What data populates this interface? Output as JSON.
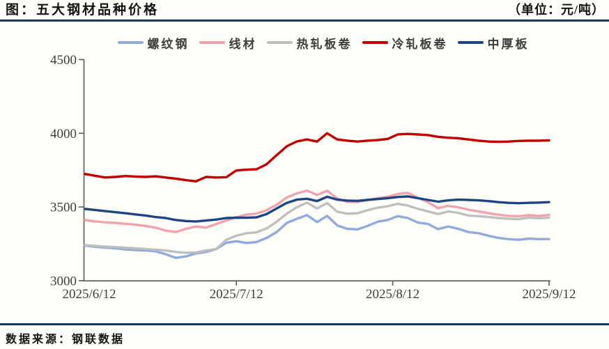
{
  "header": {
    "title": "图：五大钢材品种价格",
    "unit": "（单位：元/吨）"
  },
  "footer": {
    "source": "数据来源：钢联数据"
  },
  "colors": {
    "rule_navy": "#17375E",
    "axis": "#595959",
    "tick_label": "#3d3d3d",
    "background": "#FFFEF8"
  },
  "chart_data": {
    "type": "line",
    "title": "五大钢材品种价格",
    "unit": "元/吨",
    "ylim": [
      3000,
      4500
    ],
    "yticks": [
      4500,
      4000,
      3500,
      3000
    ],
    "x_range_days": [
      0,
      92
    ],
    "x_step_days": 2,
    "dates_start": "2025/6/12",
    "dates_end": "2025/9/12",
    "xticks": [
      {
        "label": "2025/6/12",
        "day": 0
      },
      {
        "label": "2025/7/12",
        "day": 30
      },
      {
        "label": "2025/8/12",
        "day": 61
      },
      {
        "label": "2025/9/12",
        "day": 92
      }
    ],
    "grid": false,
    "legend_position": "top",
    "series": [
      {
        "name": "螺纹钢",
        "color": "#8FAADC",
        "values": [
          3238,
          3230,
          3225,
          3220,
          3212,
          3208,
          3205,
          3200,
          3180,
          3155,
          3165,
          3185,
          3195,
          3215,
          3257,
          3268,
          3256,
          3262,
          3290,
          3330,
          3392,
          3420,
          3445,
          3398,
          3440,
          3375,
          3352,
          3348,
          3372,
          3400,
          3412,
          3438,
          3425,
          3395,
          3385,
          3350,
          3368,
          3352,
          3330,
          3322,
          3305,
          3290,
          3282,
          3278,
          3286,
          3282,
          3283
        ]
      },
      {
        "name": "线材",
        "color": "#F2A2AE",
        "values": [
          3412,
          3402,
          3396,
          3392,
          3386,
          3380,
          3372,
          3360,
          3340,
          3330,
          3352,
          3368,
          3360,
          3385,
          3408,
          3430,
          3448,
          3456,
          3478,
          3515,
          3565,
          3592,
          3612,
          3582,
          3610,
          3558,
          3535,
          3533,
          3548,
          3560,
          3570,
          3588,
          3596,
          3562,
          3532,
          3492,
          3508,
          3498,
          3482,
          3470,
          3458,
          3448,
          3440,
          3438,
          3445,
          3440,
          3446
        ]
      },
      {
        "name": "热轧板卷",
        "color": "#BFBFBF",
        "values": [
          3242,
          3236,
          3232,
          3228,
          3224,
          3220,
          3216,
          3210,
          3205,
          3195,
          3190,
          3192,
          3205,
          3215,
          3278,
          3305,
          3322,
          3328,
          3355,
          3400,
          3455,
          3498,
          3530,
          3490,
          3527,
          3468,
          3455,
          3458,
          3478,
          3495,
          3505,
          3522,
          3510,
          3488,
          3470,
          3452,
          3470,
          3460,
          3442,
          3438,
          3432,
          3425,
          3420,
          3418,
          3428,
          3424,
          3428
        ]
      },
      {
        "name": "冷轧板卷",
        "color": "#C00000",
        "values": [
          3724,
          3712,
          3700,
          3704,
          3710,
          3707,
          3704,
          3708,
          3700,
          3692,
          3682,
          3674,
          3704,
          3700,
          3702,
          3748,
          3753,
          3756,
          3790,
          3852,
          3912,
          3945,
          3958,
          3944,
          4000,
          3958,
          3950,
          3944,
          3950,
          3954,
          3962,
          3992,
          3996,
          3992,
          3988,
          3976,
          3970,
          3966,
          3958,
          3950,
          3944,
          3942,
          3944,
          3948,
          3950,
          3950,
          3952
        ]
      },
      {
        "name": "中厚板",
        "color": "#1C4587",
        "values": [
          3487,
          3480,
          3472,
          3465,
          3458,
          3450,
          3442,
          3432,
          3425,
          3412,
          3405,
          3402,
          3408,
          3415,
          3425,
          3428,
          3427,
          3430,
          3452,
          3490,
          3528,
          3550,
          3556,
          3540,
          3570,
          3550,
          3544,
          3542,
          3548,
          3554,
          3560,
          3568,
          3572,
          3560,
          3548,
          3536,
          3545,
          3550,
          3548,
          3545,
          3540,
          3533,
          3528,
          3526,
          3528,
          3530,
          3533
        ]
      }
    ]
  }
}
